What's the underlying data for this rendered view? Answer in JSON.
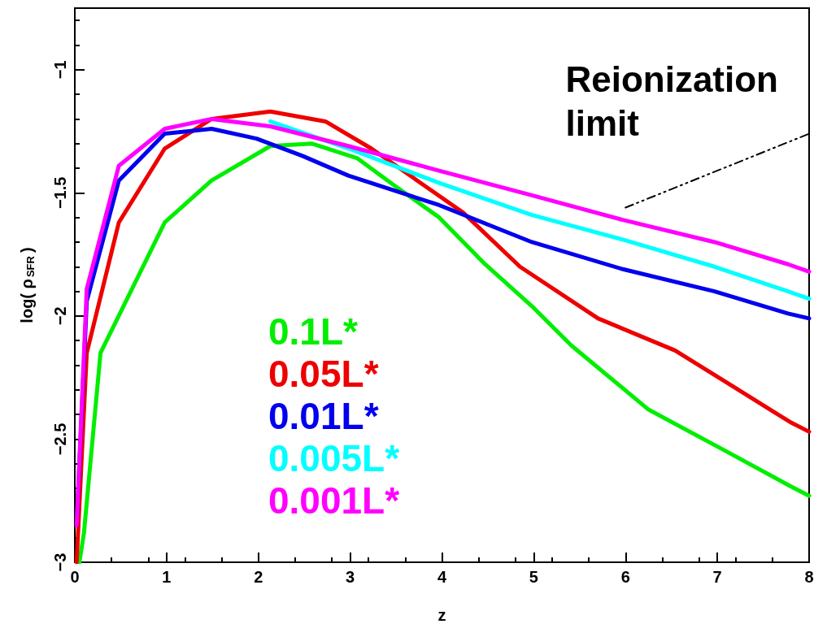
{
  "chart_data": {
    "type": "line",
    "xlabel": "z",
    "ylabel": "log( ρ$_{SFR}$)",
    "xlim": [
      0,
      8
    ],
    "xticks": [
      0,
      1,
      2,
      3,
      4,
      5,
      6,
      7,
      8
    ],
    "ylim": [
      -3,
      -0.75
    ],
    "yticks": [
      -3,
      -2.5,
      -2,
      -1.5,
      -1
    ],
    "grid": false,
    "legend": "bottom left",
    "marker": "none",
    "line_style": "solid",
    "annotations": [
      "Reionization limit"
    ],
    "series": [
      {
        "name": "0.1L*",
        "color": "#00ee00",
        "x": [
          0.05,
          0.1,
          0.28,
          0.98,
          1.49,
          2.13,
          2.58,
          3.08,
          3.48,
          3.97,
          4.47,
          4.98,
          5.41,
          6.25,
          7.1,
          7.79,
          8
        ],
        "values": [
          -3,
          -2.88,
          -2.15,
          -1.62,
          -1.45,
          -1.31,
          -1.3,
          -1.36,
          -1.47,
          -1.6,
          -1.79,
          -1.96,
          -2.12,
          -2.38,
          -2.55,
          -2.69,
          -2.73
        ]
      },
      {
        "name": "0.05L*",
        "color": "#ee0000",
        "x": [
          0.02,
          0.13,
          0.48,
          0.98,
          1.49,
          2.13,
          2.73,
          3.23,
          3.73,
          4.23,
          4.85,
          5.7,
          6.54,
          7.1,
          7.79,
          8
        ],
        "values": [
          -3,
          -2.15,
          -1.62,
          -1.32,
          -1.2,
          -1.17,
          -1.21,
          -1.32,
          -1.45,
          -1.58,
          -1.8,
          -2.01,
          -2.14,
          -2.27,
          -2.43,
          -2.47
        ]
      },
      {
        "name": "0.01L*",
        "color": "#0000ee",
        "x": [
          0.02,
          0.13,
          0.48,
          0.98,
          1.49,
          1.98,
          2.48,
          2.98,
          3.97,
          4.98,
          5.97,
          6.97,
          7.77,
          8
        ],
        "values": [
          -2.85,
          -1.94,
          -1.45,
          -1.26,
          -1.24,
          -1.28,
          -1.35,
          -1.43,
          -1.55,
          -1.7,
          -1.81,
          -1.9,
          -1.99,
          -2.01
        ]
      },
      {
        "name": "0.005L*",
        "color": "#00ffff",
        "x": [
          2.13,
          2.98,
          3.97,
          4.98,
          5.97,
          6.97,
          7.77,
          8
        ],
        "values": [
          -1.21,
          -1.32,
          -1.46,
          -1.59,
          -1.69,
          -1.8,
          -1.9,
          -1.93
        ]
      },
      {
        "name": "0.001L*",
        "color": "#ff00ff",
        "x": [
          0.02,
          0.13,
          0.48,
          0.98,
          1.49,
          2.13,
          2.98,
          3.97,
          4.98,
          5.97,
          6.97,
          7.77,
          8
        ],
        "values": [
          -2.85,
          -1.89,
          -1.39,
          -1.24,
          -1.2,
          -1.23,
          -1.31,
          -1.41,
          -1.51,
          -1.61,
          -1.7,
          -1.79,
          -1.82
        ]
      },
      {
        "type": "line",
        "color": "#000000",
        "line_style": "dashed",
        "x": [
          6,
          8
        ],
        "values": [
          -1.56,
          -1.26
        ]
      }
    ]
  }
}
